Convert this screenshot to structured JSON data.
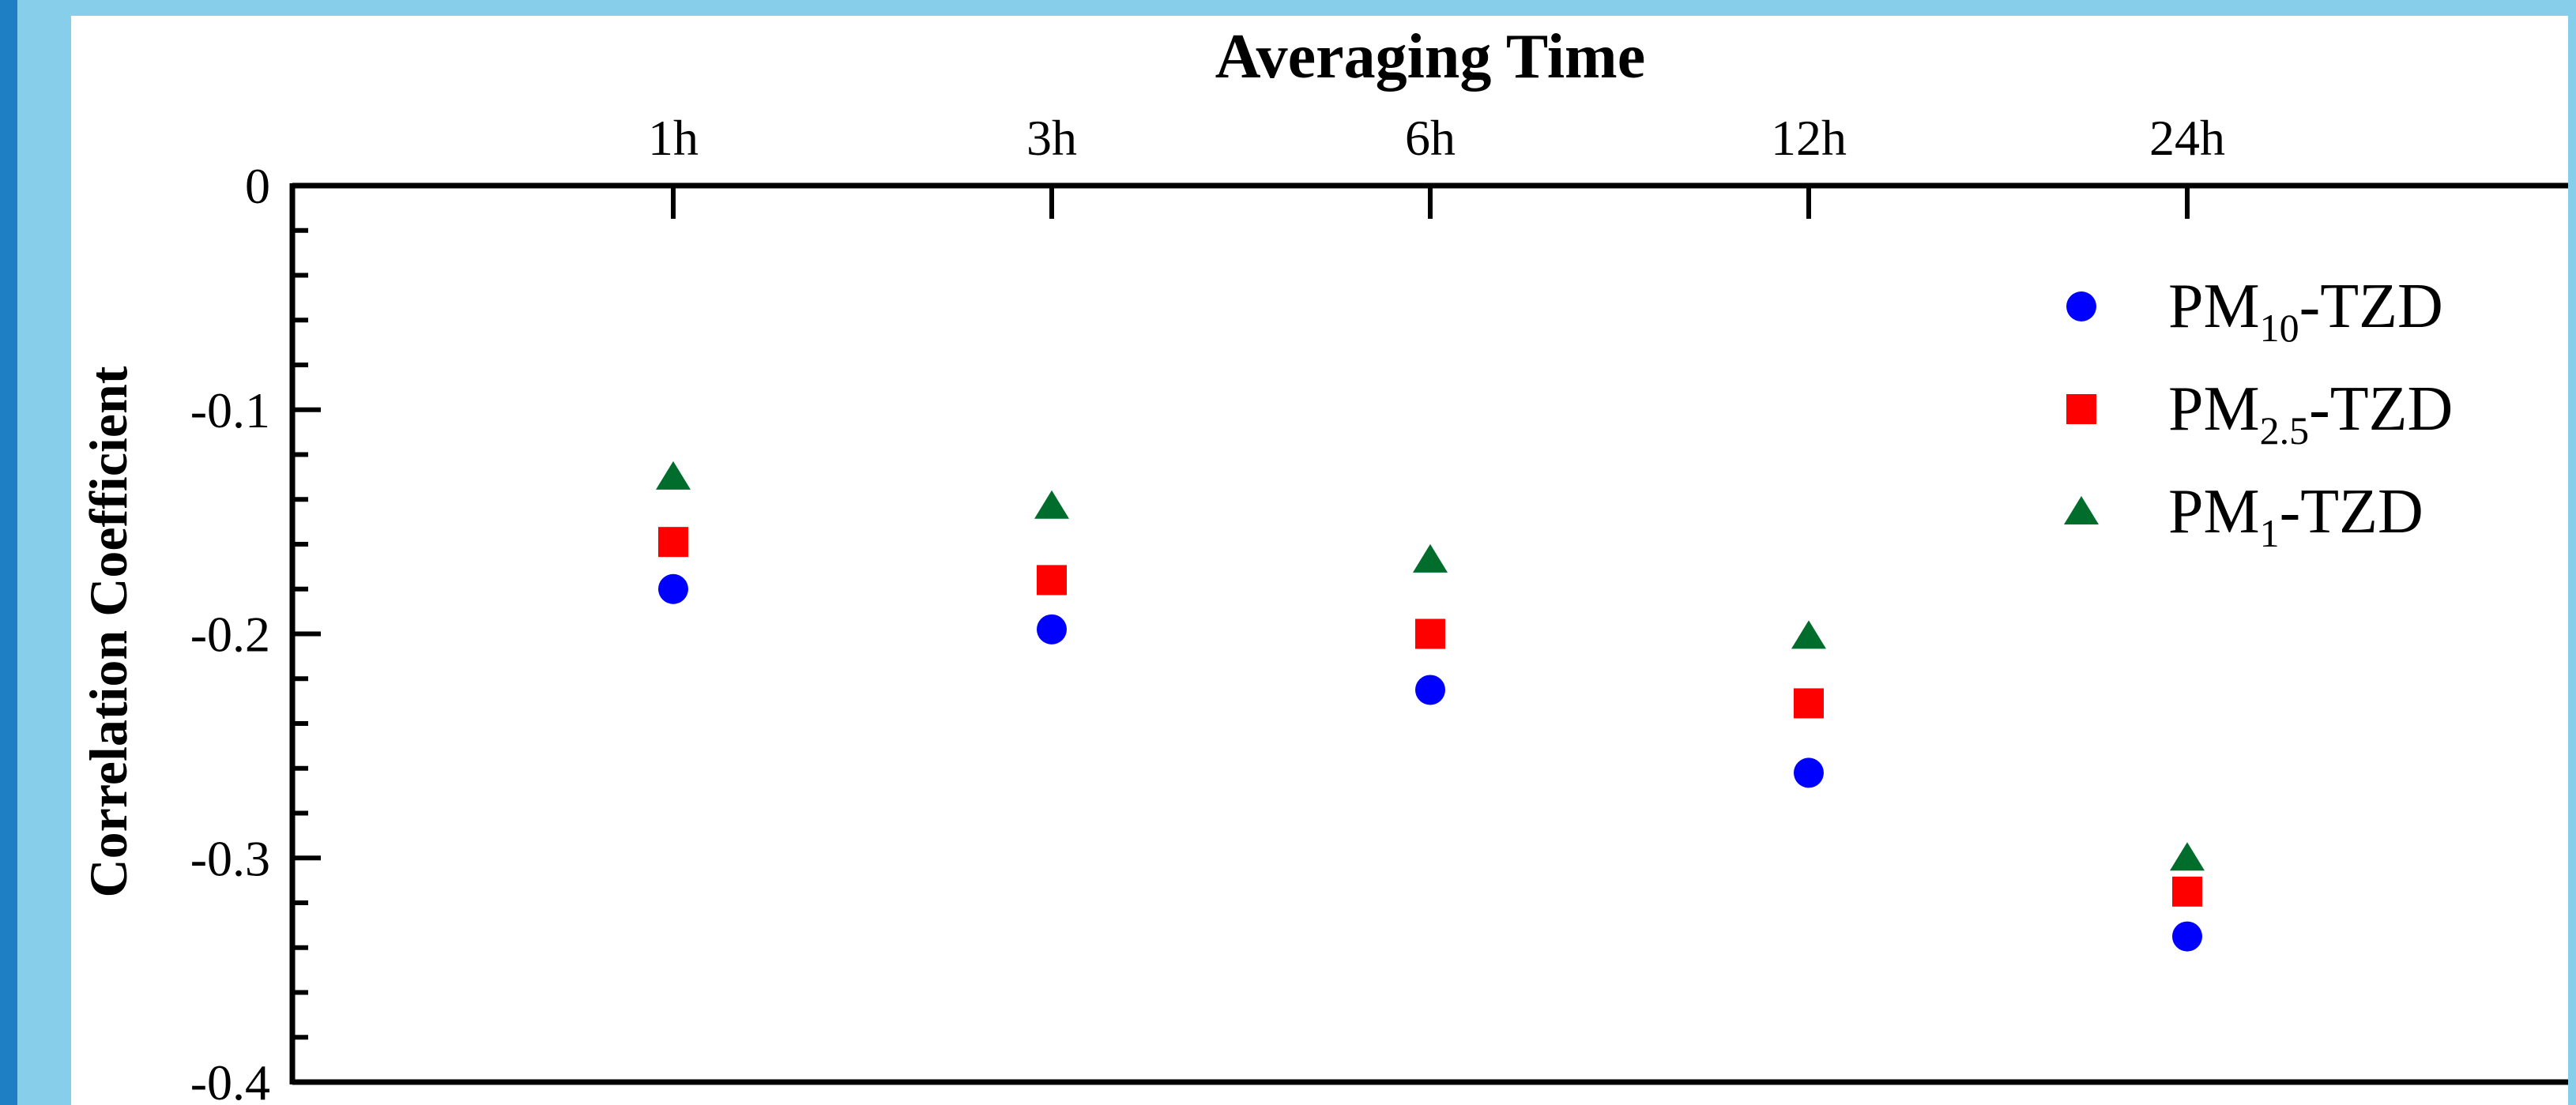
{
  "colors": {
    "background": "#87ceeb",
    "edge": "#1f7fc4",
    "panel": "#ffffff"
  },
  "chart_data": {
    "type": "scatter",
    "title": "Averaging Time",
    "xlabel": "Averaging Time",
    "ylabel": "Correlation Coefficient",
    "categories": [
      "1h",
      "3h",
      "6h",
      "12h",
      "24h"
    ],
    "ylim": [
      -0.4,
      0
    ],
    "yticks": [
      "0",
      "-0.1",
      "-0.2",
      "-0.3",
      "-0.4"
    ],
    "grid": false,
    "legend_position": "top-right",
    "series": [
      {
        "name": "PM10-TZD",
        "label_base": "PM",
        "label_sub": "10",
        "label_suffix": "-TZD",
        "marker": "circle",
        "color": "#0000ff",
        "values": [
          -0.18,
          -0.198,
          -0.225,
          -0.262,
          -0.335
        ]
      },
      {
        "name": "PM2.5-TZD",
        "label_base": "PM",
        "label_sub": "2.5",
        "label_suffix": "-TZD",
        "marker": "square",
        "color": "#ff0000",
        "values": [
          -0.159,
          -0.176,
          -0.2,
          -0.231,
          -0.315
        ]
      },
      {
        "name": "PM1-TZD",
        "label_base": "PM",
        "label_sub": "1",
        "label_suffix": "-TZD",
        "marker": "triangle",
        "color": "#006d2c",
        "values": [
          -0.13,
          -0.143,
          -0.167,
          -0.201,
          -0.3
        ]
      }
    ]
  }
}
